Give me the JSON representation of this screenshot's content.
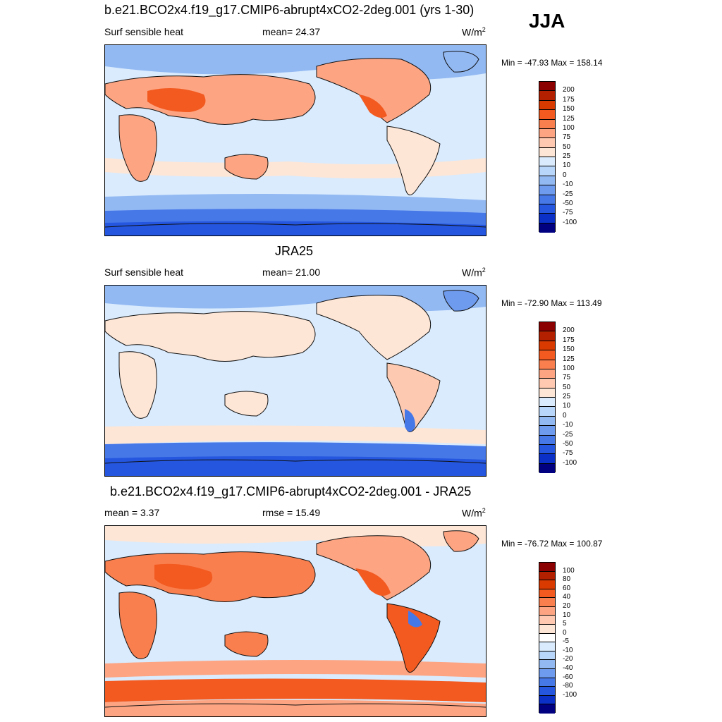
{
  "season": "JJA",
  "panels": [
    {
      "title": "b.e21.BCO2x4.f19_g17.CMIP6-abrupt4xCO2-2deg.001 (yrs 1-30)",
      "left_label": "Surf sensible heat",
      "mid_label": "mean=  24.37",
      "units_base": "W/m",
      "units_exp": "2",
      "minmax": "Min = -47.93 Max = 158.14",
      "colorbar": {
        "colors": [
          "#8b0000",
          "#b22000",
          "#d83a00",
          "#f25a20",
          "#fa7f4f",
          "#fda583",
          "#fec9b0",
          "#fee6d6",
          "#d9ebfd",
          "#b8d5fa",
          "#93b9f3",
          "#6f9bef",
          "#4778e8",
          "#2456df",
          "#0a30c8",
          "#000080"
        ],
        "labels": [
          "200",
          "175",
          "150",
          "125",
          "100",
          "75",
          "50",
          "25",
          "10",
          "0",
          "-10",
          "-25",
          "-50",
          "-75",
          "-100"
        ]
      }
    },
    {
      "title": "JRA25",
      "left_label": "Surf sensible heat",
      "mid_label": "mean=  21.00",
      "units_base": "W/m",
      "units_exp": "2",
      "minmax": "Min = -72.90 Max = 113.49",
      "colorbar": {
        "colors": [
          "#8b0000",
          "#b22000",
          "#d83a00",
          "#f25a20",
          "#fa7f4f",
          "#fda583",
          "#fec9b0",
          "#fee6d6",
          "#d9ebfd",
          "#b8d5fa",
          "#93b9f3",
          "#6f9bef",
          "#4778e8",
          "#2456df",
          "#0a30c8",
          "#000080"
        ],
        "labels": [
          "200",
          "175",
          "150",
          "125",
          "100",
          "75",
          "50",
          "25",
          "10",
          "0",
          "-10",
          "-25",
          "-50",
          "-75",
          "-100"
        ]
      }
    },
    {
      "title": "b.e21.BCO2x4.f19_g17.CMIP6-abrupt4xCO2-2deg.001 - JRA25",
      "left_label": "mean =   3.37",
      "mid_label": "rmse =  15.49",
      "units_base": "W/m",
      "units_exp": "2",
      "minmax": "Min = -76.72 Max = 100.87",
      "colorbar": {
        "colors": [
          "#8b0000",
          "#b22000",
          "#d83a00",
          "#f25a20",
          "#fa7f4f",
          "#fda583",
          "#fec9b0",
          "#fee6d6",
          "#ffffff",
          "#d9ebfd",
          "#b8d5fa",
          "#93b9f3",
          "#6f9bef",
          "#4778e8",
          "#2456df",
          "#0a30c8",
          "#000080"
        ],
        "labels": [
          "100",
          "80",
          "60",
          "40",
          "20",
          "10",
          "5",
          "0",
          "-5",
          "-10",
          "-20",
          "-40",
          "-60",
          "-80",
          "-100"
        ]
      }
    }
  ],
  "palette": {
    "ocean_light": "#d9ebfd",
    "blue_mid": "#93b9f3",
    "blue_strong": "#4778e8",
    "blue_deep": "#2456df",
    "land_pale": "#fee6d6",
    "red_light": "#fda583",
    "red_mid": "#f25a20",
    "coast": "#111111"
  }
}
